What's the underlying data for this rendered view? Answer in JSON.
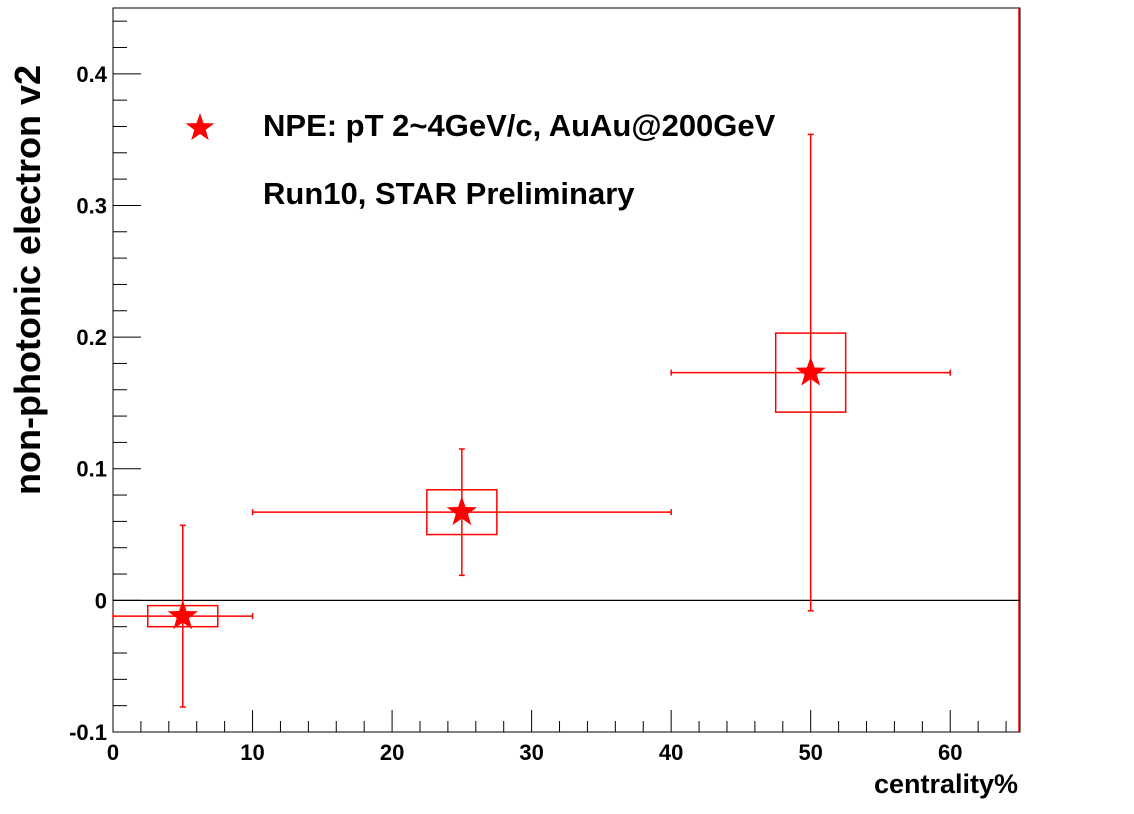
{
  "chart_data": {
    "type": "errorscatter",
    "y_label": "non-photonic electron v2",
    "x_label": "centrality%",
    "annotation": "Run10, STAR Preliminary",
    "xlim": [
      0,
      65
    ],
    "ylim": [
      -0.1,
      0.45
    ],
    "xticks": [
      0,
      10,
      20,
      30,
      40,
      50,
      60
    ],
    "yticks": [
      -0.1,
      0,
      0.1,
      0.2,
      0.3,
      0.4
    ],
    "series": [
      {
        "name": "NPE: pT 2~4GeV/c, AuAu@200GeV",
        "color": "#ff0000",
        "x": [
          5,
          25,
          50
        ],
        "values": [
          -0.012,
          0.067,
          0.173
        ],
        "xerr": [
          5,
          15,
          10
        ],
        "yerr": [
          0.069,
          0.048,
          0.181
        ],
        "syserr": [
          0.008,
          0.017,
          0.03
        ]
      }
    ]
  }
}
